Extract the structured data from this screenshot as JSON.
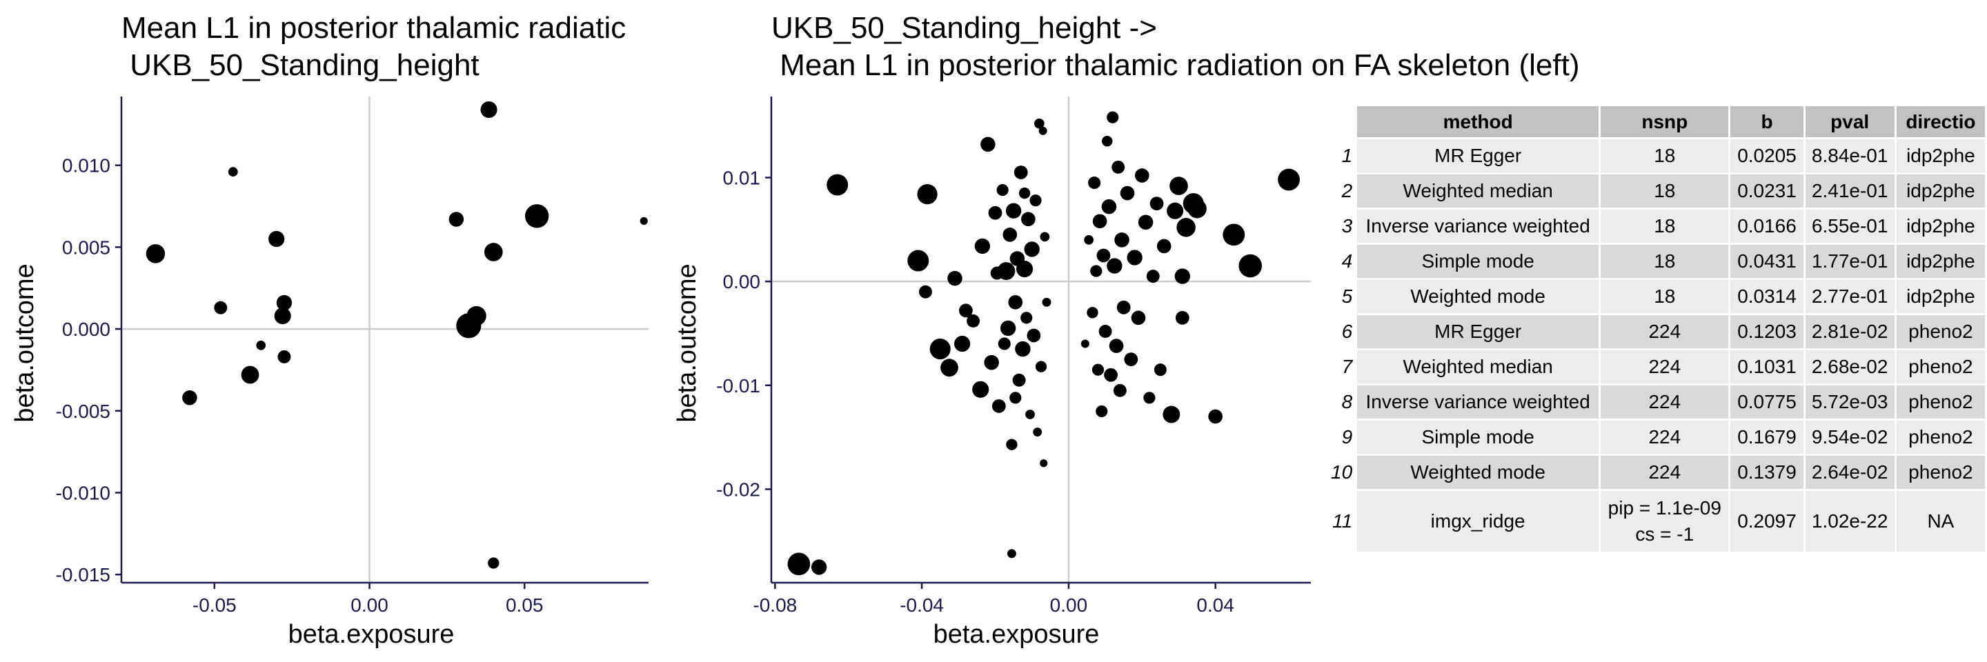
{
  "colors": {
    "axis": "#1a1a4e",
    "tick_text": "#1a1a4e",
    "zero_line": "#cccccc",
    "point": "#000000",
    "header_bg": "#c2c2c2",
    "row_light": "#ececec",
    "row_dark": "#d9d9d9"
  },
  "chart_data": [
    {
      "type": "scatter",
      "title": "Mean L1 in posterior thalamic radiatic\n UKB_50_Standing_height",
      "xlabel": "beta.exposure",
      "ylabel": "beta.outcome",
      "xlim": [
        -0.08,
        0.09
      ],
      "ylim": [
        -0.0155,
        0.0142
      ],
      "xticks": [
        -0.05,
        0.0,
        0.05
      ],
      "xtick_labels": [
        "-0.05",
        "0.00",
        "0.05"
      ],
      "yticks": [
        -0.015,
        -0.01,
        -0.005,
        0.0,
        0.005,
        0.01
      ],
      "ytick_labels": [
        "-0.015",
        "-0.010",
        "-0.005",
        "0.000",
        "0.005",
        "0.010"
      ],
      "grid": false,
      "zero_lines": true,
      "points": [
        {
          "x": -0.069,
          "y": 0.0046,
          "size": 3.2
        },
        {
          "x": -0.058,
          "y": -0.0042,
          "size": 2.5
        },
        {
          "x": -0.048,
          "y": 0.0013,
          "size": 2.2
        },
        {
          "x": -0.044,
          "y": 0.0096,
          "size": 1.6
        },
        {
          "x": -0.0385,
          "y": -0.0028,
          "size": 3.0
        },
        {
          "x": -0.035,
          "y": -0.001,
          "size": 1.6
        },
        {
          "x": -0.03,
          "y": 0.0055,
          "size": 2.7
        },
        {
          "x": -0.0275,
          "y": 0.0016,
          "size": 2.6
        },
        {
          "x": -0.028,
          "y": 0.0008,
          "size": 2.8
        },
        {
          "x": -0.0275,
          "y": -0.0017,
          "size": 2.2
        },
        {
          "x": 0.028,
          "y": 0.0067,
          "size": 2.5
        },
        {
          "x": 0.032,
          "y": 0.0002,
          "size": 4.2
        },
        {
          "x": 0.0345,
          "y": 0.0008,
          "size": 3.3
        },
        {
          "x": 0.0385,
          "y": 0.0134,
          "size": 2.8
        },
        {
          "x": 0.04,
          "y": 0.0047,
          "size": 3.1
        },
        {
          "x": 0.054,
          "y": 0.0069,
          "size": 4.0
        },
        {
          "x": 0.04,
          "y": -0.0143,
          "size": 1.9
        },
        {
          "x": 0.0885,
          "y": 0.0066,
          "size": 1.3
        }
      ]
    },
    {
      "type": "scatter",
      "title": "UKB_50_Standing_height ->\n Mean L1 in posterior thalamic radiation on FA skeleton (left)",
      "xlabel": "beta.exposure",
      "ylabel": "beta.outcome",
      "xlim": [
        -0.081,
        0.066
      ],
      "ylim": [
        -0.029,
        0.0178
      ],
      "xticks": [
        -0.08,
        -0.04,
        0.0,
        0.04
      ],
      "xtick_labels": [
        "-0.08",
        "-0.04",
        "0.00",
        "0.04"
      ],
      "yticks": [
        -0.02,
        -0.01,
        0.0,
        0.01
      ],
      "ytick_labels": [
        "-0.02",
        "-0.01",
        "0.00",
        "0.01"
      ],
      "grid": false,
      "zero_lines": true,
      "points": [
        {
          "x": -0.0735,
          "y": -0.0272,
          "size": 3.8
        },
        {
          "x": -0.068,
          "y": -0.0275,
          "size": 2.6
        },
        {
          "x": -0.063,
          "y": 0.0093,
          "size": 3.6
        },
        {
          "x": -0.041,
          "y": 0.002,
          "size": 3.6
        },
        {
          "x": -0.039,
          "y": -0.001,
          "size": 2.2
        },
        {
          "x": -0.0385,
          "y": 0.0084,
          "size": 3.4
        },
        {
          "x": -0.035,
          "y": -0.0065,
          "size": 3.5
        },
        {
          "x": -0.0325,
          "y": -0.0083,
          "size": 3.0
        },
        {
          "x": -0.031,
          "y": 0.0003,
          "size": 2.5
        },
        {
          "x": -0.029,
          "y": -0.006,
          "size": 2.7
        },
        {
          "x": -0.026,
          "y": -0.0038,
          "size": 2.2
        },
        {
          "x": -0.024,
          "y": -0.0104,
          "size": 2.8
        },
        {
          "x": -0.0235,
          "y": 0.0034,
          "size": 2.6
        },
        {
          "x": -0.022,
          "y": 0.0132,
          "size": 2.5
        },
        {
          "x": -0.021,
          "y": -0.0078,
          "size": 2.5
        },
        {
          "x": -0.02,
          "y": 0.0066,
          "size": 2.3
        },
        {
          "x": -0.019,
          "y": -0.012,
          "size": 2.3
        },
        {
          "x": -0.018,
          "y": 0.0088,
          "size": 2.0
        },
        {
          "x": -0.017,
          "y": 0.001,
          "size": 3.0
        },
        {
          "x": -0.0165,
          "y": -0.0045,
          "size": 2.6
        },
        {
          "x": -0.016,
          "y": 0.0045,
          "size": 2.4
        },
        {
          "x": -0.0155,
          "y": -0.0157,
          "size": 1.9
        },
        {
          "x": -0.015,
          "y": 0.0068,
          "size": 2.6
        },
        {
          "x": -0.0145,
          "y": -0.002,
          "size": 2.4
        },
        {
          "x": -0.014,
          "y": 0.0022,
          "size": 2.5
        },
        {
          "x": -0.0135,
          "y": -0.0095,
          "size": 2.2
        },
        {
          "x": -0.013,
          "y": 0.0105,
          "size": 2.3
        },
        {
          "x": -0.0125,
          "y": -0.0065,
          "size": 2.6
        },
        {
          "x": -0.012,
          "y": 0.0012,
          "size": 2.8
        },
        {
          "x": -0.0115,
          "y": -0.0035,
          "size": 2.0
        },
        {
          "x": -0.011,
          "y": 0.006,
          "size": 2.4
        },
        {
          "x": -0.0105,
          "y": -0.0128,
          "size": 1.6
        },
        {
          "x": -0.01,
          "y": 0.0031,
          "size": 2.6
        },
        {
          "x": -0.0095,
          "y": -0.0052,
          "size": 2.3
        },
        {
          "x": -0.009,
          "y": 0.0078,
          "size": 2.0
        },
        {
          "x": -0.0085,
          "y": -0.0145,
          "size": 1.5
        },
        {
          "x": -0.008,
          "y": 0.0152,
          "size": 1.7
        },
        {
          "x": -0.0075,
          "y": -0.0082,
          "size": 1.9
        },
        {
          "x": -0.007,
          "y": 0.0145,
          "size": 1.4
        },
        {
          "x": -0.0068,
          "y": -0.0175,
          "size": 1.3
        },
        {
          "x": -0.0065,
          "y": 0.0043,
          "size": 1.6
        },
        {
          "x": -0.006,
          "y": -0.002,
          "size": 1.5
        },
        {
          "x": -0.0155,
          "y": -0.0262,
          "size": 1.5
        },
        {
          "x": -0.028,
          "y": -0.0028,
          "size": 2.3
        },
        {
          "x": -0.0195,
          "y": 0.0008,
          "size": 2.2
        },
        {
          "x": -0.0175,
          "y": -0.006,
          "size": 2.1
        },
        {
          "x": -0.012,
          "y": 0.0085,
          "size": 1.9
        },
        {
          "x": -0.0145,
          "y": -0.0112,
          "size": 2.0
        },
        {
          "x": 0.0045,
          "y": -0.006,
          "size": 1.4
        },
        {
          "x": 0.0055,
          "y": 0.004,
          "size": 1.6
        },
        {
          "x": 0.0065,
          "y": -0.003,
          "size": 1.9
        },
        {
          "x": 0.007,
          "y": 0.0095,
          "size": 2.1
        },
        {
          "x": 0.0075,
          "y": 0.001,
          "size": 2.0
        },
        {
          "x": 0.008,
          "y": -0.0085,
          "size": 2.0
        },
        {
          "x": 0.0085,
          "y": 0.0058,
          "size": 2.4
        },
        {
          "x": 0.009,
          "y": -0.0125,
          "size": 2.0
        },
        {
          "x": 0.0095,
          "y": 0.0025,
          "size": 2.3
        },
        {
          "x": 0.01,
          "y": -0.0048,
          "size": 2.2
        },
        {
          "x": 0.0105,
          "y": 0.0135,
          "size": 1.8
        },
        {
          "x": 0.011,
          "y": 0.0072,
          "size": 2.5
        },
        {
          "x": 0.0115,
          "y": -0.009,
          "size": 2.3
        },
        {
          "x": 0.012,
          "y": 0.0158,
          "size": 2.0
        },
        {
          "x": 0.0125,
          "y": 0.0015,
          "size": 2.6
        },
        {
          "x": 0.013,
          "y": -0.0062,
          "size": 2.4
        },
        {
          "x": 0.0135,
          "y": 0.011,
          "size": 2.2
        },
        {
          "x": 0.014,
          "y": -0.0105,
          "size": 2.2
        },
        {
          "x": 0.0145,
          "y": 0.004,
          "size": 2.5
        },
        {
          "x": 0.015,
          "y": -0.0025,
          "size": 2.3
        },
        {
          "x": 0.016,
          "y": 0.0085,
          "size": 2.4
        },
        {
          "x": 0.017,
          "y": -0.0075,
          "size": 2.3
        },
        {
          "x": 0.018,
          "y": 0.0023,
          "size": 2.6
        },
        {
          "x": 0.019,
          "y": -0.0035,
          "size": 2.4
        },
        {
          "x": 0.02,
          "y": 0.0102,
          "size": 2.4
        },
        {
          "x": 0.021,
          "y": 0.0057,
          "size": 2.5
        },
        {
          "x": 0.022,
          "y": -0.0112,
          "size": 2.0
        },
        {
          "x": 0.023,
          "y": 0.0005,
          "size": 2.2
        },
        {
          "x": 0.024,
          "y": 0.0075,
          "size": 2.3
        },
        {
          "x": 0.025,
          "y": -0.0085,
          "size": 2.1
        },
        {
          "x": 0.026,
          "y": 0.0034,
          "size": 2.4
        },
        {
          "x": 0.028,
          "y": -0.0128,
          "size": 2.9
        },
        {
          "x": 0.029,
          "y": 0.0068,
          "size": 2.8
        },
        {
          "x": 0.03,
          "y": 0.0092,
          "size": 3.1
        },
        {
          "x": 0.031,
          "y": 0.0005,
          "size": 2.6
        },
        {
          "x": 0.031,
          "y": -0.0035,
          "size": 2.3
        },
        {
          "x": 0.032,
          "y": 0.0052,
          "size": 3.2
        },
        {
          "x": 0.034,
          "y": 0.0075,
          "size": 3.5
        },
        {
          "x": 0.035,
          "y": 0.007,
          "size": 3.2
        },
        {
          "x": 0.04,
          "y": -0.013,
          "size": 2.4
        },
        {
          "x": 0.045,
          "y": 0.0045,
          "size": 3.7
        },
        {
          "x": 0.0495,
          "y": 0.0015,
          "size": 3.9
        },
        {
          "x": 0.06,
          "y": 0.0098,
          "size": 3.7
        }
      ]
    }
  ],
  "table": {
    "headers": {
      "method": "method",
      "nsnp": "nsnp",
      "b": "b",
      "pval": "pval",
      "direction": "directio"
    },
    "rows": [
      {
        "idx": "1",
        "method": "MR Egger",
        "nsnp": "18",
        "b": "0.0205",
        "pval": "8.84e-01",
        "direction": "idp2phe"
      },
      {
        "idx": "2",
        "method": "Weighted median",
        "nsnp": "18",
        "b": "0.0231",
        "pval": "2.41e-01",
        "direction": "idp2phe"
      },
      {
        "idx": "3",
        "method": "Inverse variance weighted",
        "nsnp": "18",
        "b": "0.0166",
        "pval": "6.55e-01",
        "direction": "idp2phe"
      },
      {
        "idx": "4",
        "method": "Simple mode",
        "nsnp": "18",
        "b": "0.0431",
        "pval": "1.77e-01",
        "direction": "idp2phe"
      },
      {
        "idx": "5",
        "method": "Weighted mode",
        "nsnp": "18",
        "b": "0.0314",
        "pval": "2.77e-01",
        "direction": "idp2phe"
      },
      {
        "idx": "6",
        "method": "MR Egger",
        "nsnp": "224",
        "b": "0.1203",
        "pval": "2.81e-02",
        "direction": "pheno2"
      },
      {
        "idx": "7",
        "method": "Weighted median",
        "nsnp": "224",
        "b": "0.1031",
        "pval": "2.68e-02",
        "direction": "pheno2"
      },
      {
        "idx": "8",
        "method": "Inverse variance weighted",
        "nsnp": "224",
        "b": "0.0775",
        "pval": "5.72e-03",
        "direction": "pheno2"
      },
      {
        "idx": "9",
        "method": "Simple mode",
        "nsnp": "224",
        "b": "0.1679",
        "pval": "9.54e-02",
        "direction": "pheno2"
      },
      {
        "idx": "10",
        "method": "Weighted mode",
        "nsnp": "224",
        "b": "0.1379",
        "pval": "2.64e-02",
        "direction": "pheno2"
      }
    ],
    "last_row": {
      "idx": "11",
      "method": "imgx_ridge",
      "nsnp_line1": "pip = 1.1e-09",
      "nsnp_line2": "cs = -1",
      "b": "0.2097",
      "pval": "1.02e-22",
      "direction": "NA"
    }
  }
}
